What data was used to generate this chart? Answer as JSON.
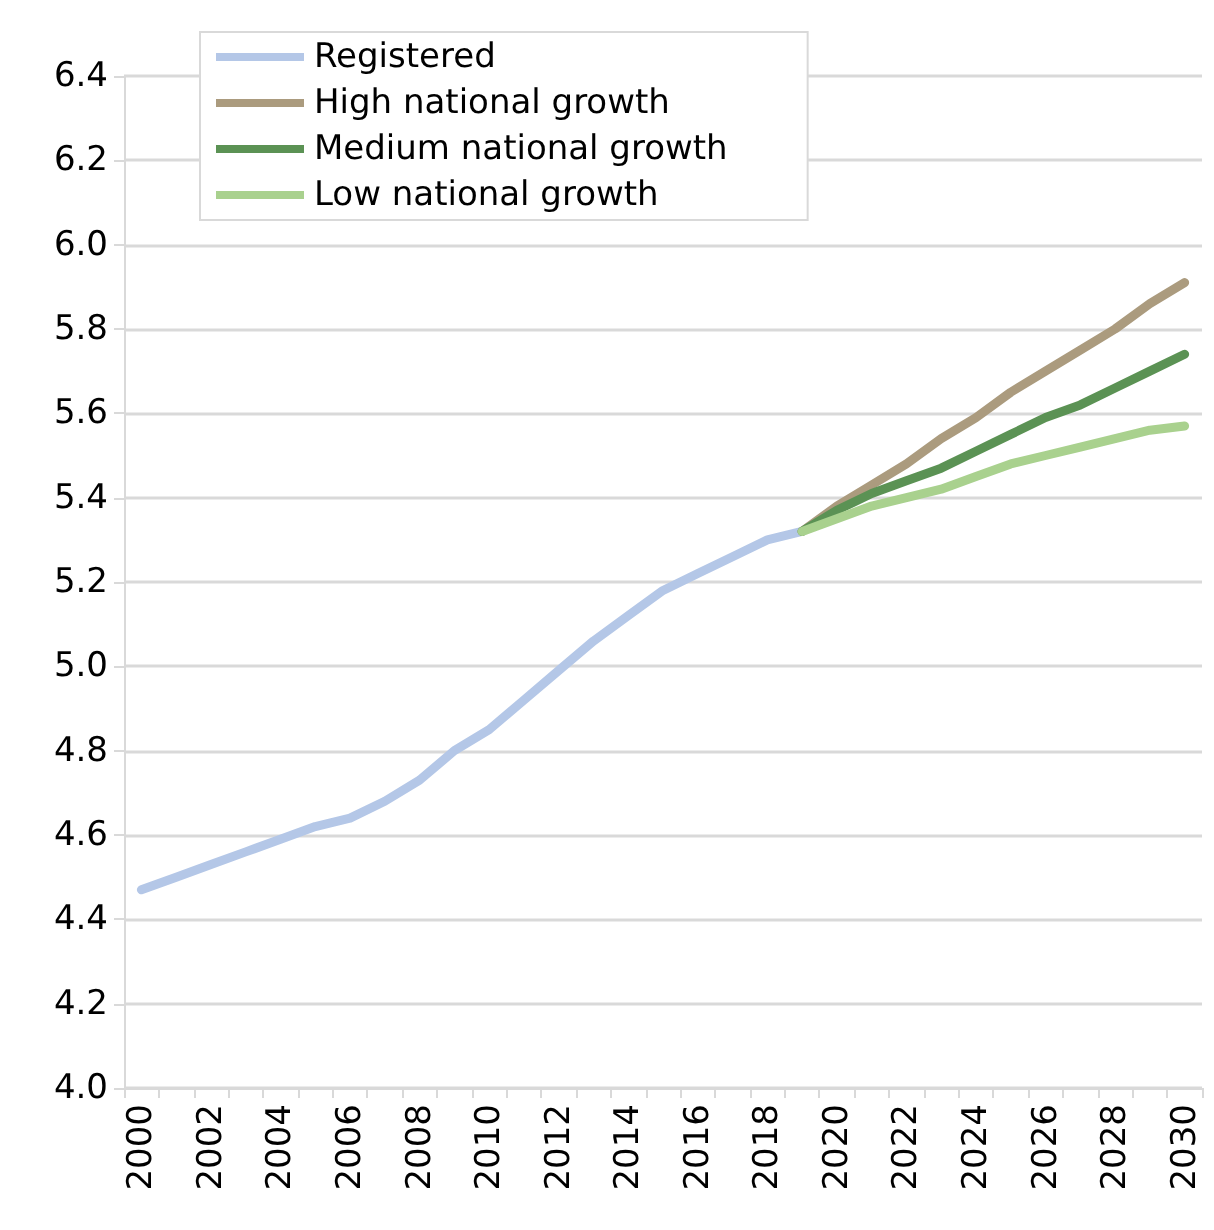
{
  "chart_data": {
    "type": "line",
    "categories": [
      "2000",
      null,
      "2002",
      null,
      "2004",
      null,
      "2006",
      null,
      "2008",
      null,
      "2010",
      null,
      "2012",
      null,
      "2014",
      null,
      "2016",
      null,
      "2018",
      null,
      "2020",
      null,
      "2022",
      null,
      "2024",
      null,
      "2026",
      null,
      "2028",
      null,
      "2030"
    ],
    "series": [
      {
        "name": "Registered",
        "color": "#b4c7e7",
        "values": [
          4.47,
          4.5,
          4.53,
          4.56,
          4.59,
          4.62,
          4.64,
          4.68,
          4.73,
          4.8,
          4.85,
          4.92,
          4.99,
          5.06,
          5.12,
          5.18,
          5.22,
          5.26,
          5.3,
          5.32,
          null,
          null,
          null,
          null,
          null,
          null,
          null,
          null,
          null,
          null,
          null
        ]
      },
      {
        "name": "High national growth",
        "color": "#ab9b7e",
        "values": [
          null,
          null,
          null,
          null,
          null,
          null,
          null,
          null,
          null,
          null,
          null,
          null,
          null,
          null,
          null,
          null,
          null,
          null,
          null,
          5.32,
          5.38,
          5.43,
          5.48,
          5.54,
          5.59,
          5.65,
          5.7,
          5.75,
          5.8,
          5.86,
          5.91
        ]
      },
      {
        "name": "Medium national growth",
        "color": "#5b9254",
        "values": [
          null,
          null,
          null,
          null,
          null,
          null,
          null,
          null,
          null,
          null,
          null,
          null,
          null,
          null,
          null,
          null,
          null,
          null,
          null,
          5.32,
          5.37,
          5.41,
          5.44,
          5.47,
          5.51,
          5.55,
          5.59,
          5.62,
          5.66,
          5.7,
          5.74
        ]
      },
      {
        "name": "Low national growth",
        "color": "#a9d18e",
        "values": [
          null,
          null,
          null,
          null,
          null,
          null,
          null,
          null,
          null,
          null,
          null,
          null,
          null,
          null,
          null,
          null,
          null,
          null,
          null,
          5.32,
          5.35,
          5.38,
          5.4,
          5.42,
          5.45,
          5.48,
          5.5,
          5.52,
          5.54,
          5.56,
          5.57
        ]
      }
    ],
    "ylim": [
      4.0,
      6.4
    ],
    "yticks": [
      {
        "value": 4.0,
        "label": "4.0"
      },
      4.2,
      4.4,
      4.6,
      4.8,
      {
        "value": 5.0,
        "label": "5.0"
      },
      5.2,
      5.4,
      5.6,
      5.8,
      {
        "value": 6.0,
        "label": "6.0"
      },
      6.2,
      6.4
    ],
    "grid": "y",
    "legend": "top left",
    "marker": "none",
    "line_style": "solid"
  }
}
